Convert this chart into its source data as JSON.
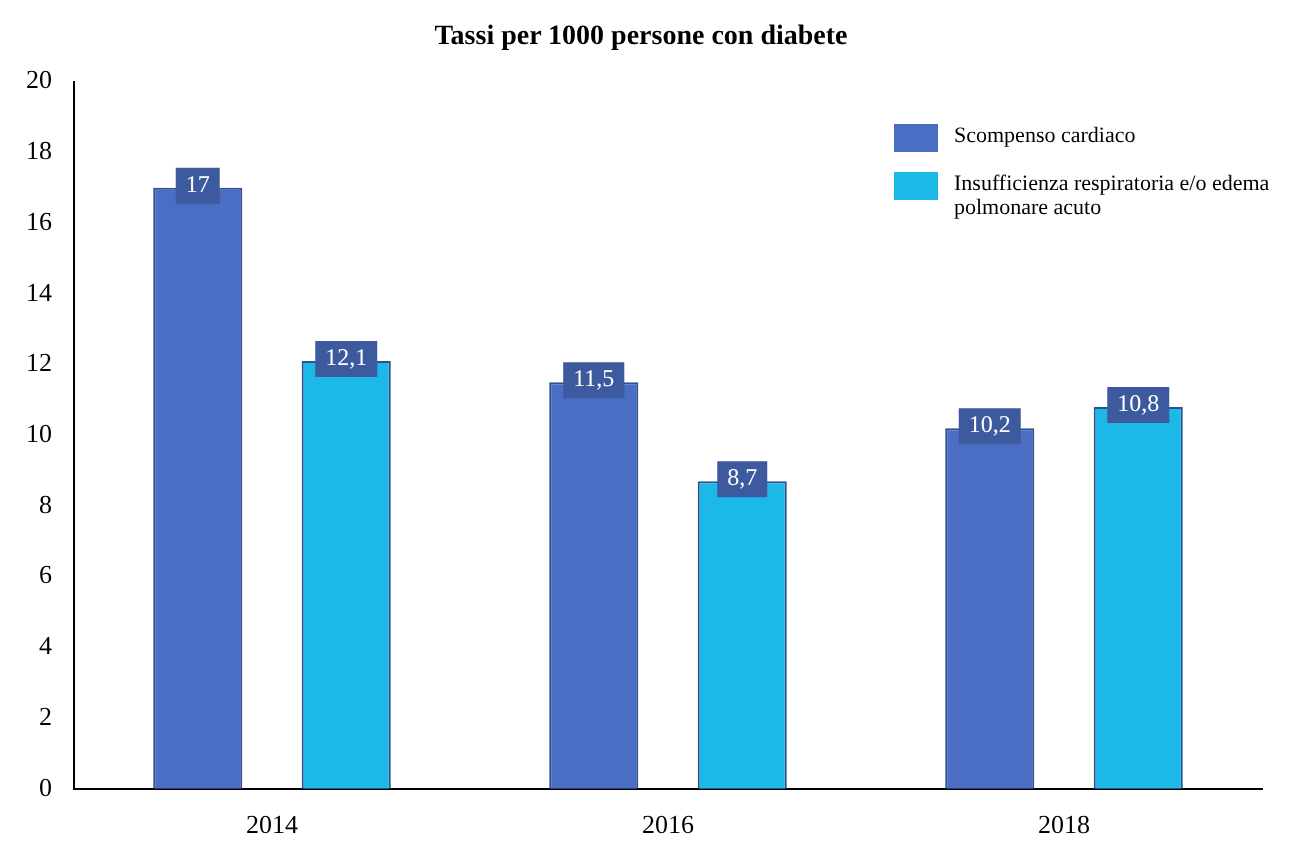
{
  "chart_data": {
    "type": "bar",
    "title": "Tassi per 1000 persone con diabete",
    "categories": [
      "2014",
      "2016",
      "2018"
    ],
    "series": [
      {
        "name": "Scompenso cardiaco",
        "color": "#4a6ec4",
        "values": [
          17,
          11.5,
          10.2
        ],
        "value_labels": [
          "17",
          "11,5",
          "10,2"
        ]
      },
      {
        "name": "Insufficienza respiratoria e/o edema polmonare acuto",
        "color": "#1cb8e8",
        "values": [
          12.1,
          8.7,
          10.8
        ],
        "value_labels": [
          "12,1",
          "8,7",
          "10,8"
        ]
      }
    ],
    "ylim": [
      0,
      20
    ],
    "yticks": [
      0,
      2,
      4,
      6,
      8,
      10,
      12,
      14,
      16,
      18,
      20
    ],
    "grid": false,
    "legend": "top right"
  }
}
